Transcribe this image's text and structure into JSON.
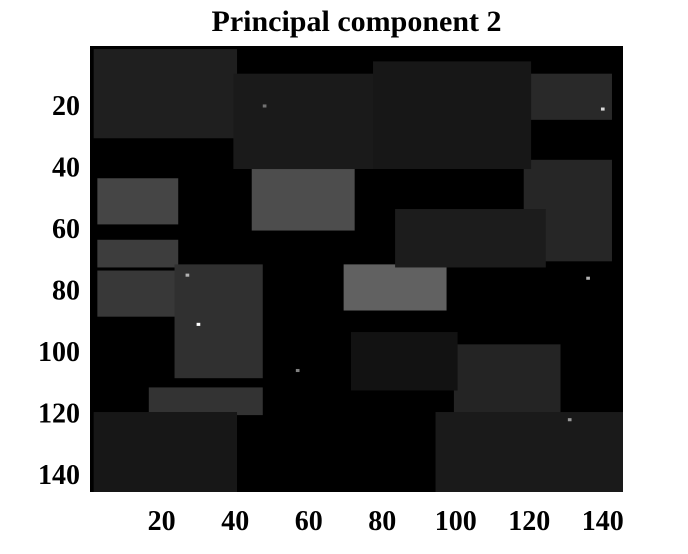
{
  "chart_data": {
    "type": "heatmap",
    "title": "Principal component 2",
    "xlabel": "",
    "ylabel": "",
    "colormap": "gray",
    "background_color": "#000000",
    "x_range": [
      1,
      145
    ],
    "y_range": [
      1,
      145
    ],
    "y_reversed": true,
    "x_ticks": [
      "20",
      "40",
      "60",
      "80",
      "100",
      "120",
      "140"
    ],
    "y_ticks": [
      "20",
      "40",
      "60",
      "80",
      "100",
      "120",
      "140"
    ],
    "grid": false,
    "legend": "none",
    "regions": [
      {
        "x": [
          70,
          97
        ],
        "y": [
          72,
          86
        ],
        "intensity": 0.38
      },
      {
        "x": [
          45,
          72
        ],
        "y": [
          40,
          60
        ],
        "intensity": 0.3
      },
      {
        "x": [
          3,
          24
        ],
        "y": [
          44,
          58
        ],
        "intensity": 0.27
      },
      {
        "x": [
          3,
          24
        ],
        "y": [
          64,
          72
        ],
        "intensity": 0.24
      },
      {
        "x": [
          3,
          24
        ],
        "y": [
          74,
          88
        ],
        "intensity": 0.22
      },
      {
        "x": [
          24,
          47
        ],
        "y": [
          72,
          108
        ],
        "intensity": 0.19
      },
      {
        "x": [
          17,
          47
        ],
        "y": [
          112,
          120
        ],
        "intensity": 0.2
      },
      {
        "x": [
          119,
          142
        ],
        "y": [
          38,
          70
        ],
        "intensity": 0.15
      },
      {
        "x": [
          119,
          142
        ],
        "y": [
          10,
          24
        ],
        "intensity": 0.16
      },
      {
        "x": [
          100,
          128
        ],
        "y": [
          98,
          124
        ],
        "intensity": 0.14
      },
      {
        "x": [
          2,
          40
        ],
        "y": [
          2,
          30
        ],
        "intensity": 0.12
      },
      {
        "x": [
          40,
          82
        ],
        "y": [
          10,
          40
        ],
        "intensity": 0.1
      },
      {
        "x": [
          78,
          120
        ],
        "y": [
          6,
          40
        ],
        "intensity": 0.09
      },
      {
        "x": [
          84,
          124
        ],
        "y": [
          54,
          72
        ],
        "intensity": 0.11
      },
      {
        "x": [
          95,
          145
        ],
        "y": [
          120,
          145
        ],
        "intensity": 0.1
      },
      {
        "x": [
          2,
          40
        ],
        "y": [
          120,
          145
        ],
        "intensity": 0.09
      },
      {
        "x": [
          72,
          100
        ],
        "y": [
          94,
          112
        ],
        "intensity": 0.07
      }
    ],
    "bright_pixels": [
      {
        "x": 30,
        "y": 91,
        "intensity": 1.0
      },
      {
        "x": 140,
        "y": 21,
        "intensity": 0.85
      },
      {
        "x": 27,
        "y": 75,
        "intensity": 0.7
      },
      {
        "x": 136,
        "y": 76,
        "intensity": 0.7
      },
      {
        "x": 131,
        "y": 122,
        "intensity": 0.6
      },
      {
        "x": 48,
        "y": 20,
        "intensity": 0.45
      },
      {
        "x": 57,
        "y": 106,
        "intensity": 0.5
      }
    ]
  }
}
